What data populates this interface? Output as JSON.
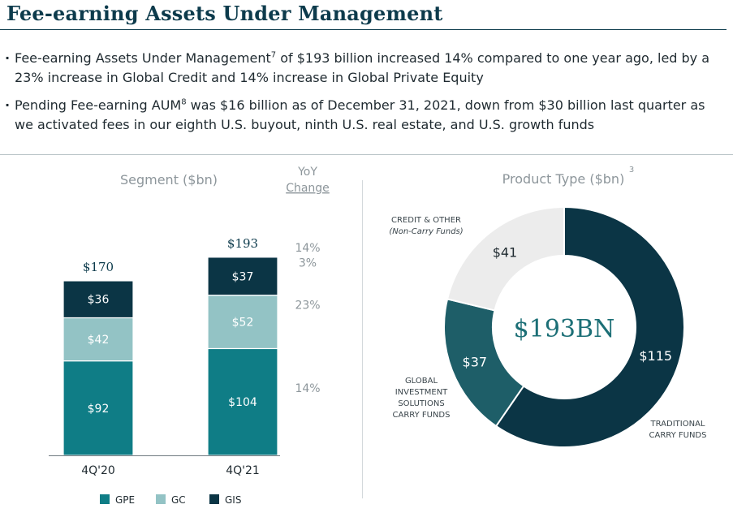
{
  "header": {
    "title": "Fee-earning Assets Under Management"
  },
  "bullets": [
    {
      "before": "Fee-earning Assets Under Management",
      "sup": "7",
      "after": " of $193 billion increased 14% compared to one year ago, led by a 23% increase in Global Credit and 14% increase in Global Private Equity"
    },
    {
      "before": "Pending Fee-earning AUM",
      "sup": "8",
      "after": " was $16 billion as of December 31, 2021, down from $30 billion last quarter as we activated fees in our eighth U.S. buyout, ninth U.S. real estate, and U.S. growth funds"
    }
  ],
  "colors": {
    "gpe": "#0f7d86",
    "gc": "#93c3c5",
    "gis": "#0b3545",
    "donut_traditional": "#0b3545",
    "donut_gis": "#1e5e68",
    "donut_credit": "#ececec",
    "accent_text": "#0d3b4c",
    "muted_text": "#8d969b"
  },
  "chart_data": [
    {
      "type": "bar",
      "stacked": true,
      "title": "Segment ($bn)",
      "categories": [
        "4Q'20",
        "4Q'21"
      ],
      "series": [
        {
          "name": "GPE",
          "values": [
            92,
            104
          ],
          "labels": [
            "$92",
            "$104"
          ]
        },
        {
          "name": "GC",
          "values": [
            42,
            52
          ],
          "labels": [
            "$42",
            "$52"
          ]
        },
        {
          "name": "GIS",
          "values": [
            36,
            37
          ],
          "labels": [
            "$36",
            "$37"
          ]
        }
      ],
      "totals": [
        170,
        193
      ],
      "total_labels": [
        "$170",
        "$193"
      ],
      "yoy_header": [
        "YoY",
        "Change"
      ],
      "yoy_total": "14%",
      "yoy_by_series": {
        "GIS": "3%",
        "GC": "23%",
        "GPE": "14%"
      },
      "legend": [
        "GPE",
        "GC",
        "GIS"
      ],
      "legend_position": "bottom",
      "ylim": [
        0,
        200
      ]
    },
    {
      "type": "pie",
      "donut": true,
      "title": "Product Type ($bn)",
      "title_sup": "3",
      "center_label": "$193BN",
      "slices": [
        {
          "label_lines": [
            "TRADITIONAL",
            "CARRY FUNDS"
          ],
          "sublabel": "",
          "value": 115,
          "value_label": "$115"
        },
        {
          "label_lines": [
            "GLOBAL",
            "INVESTMENT",
            "SOLUTIONS",
            "CARRY FUNDS"
          ],
          "sublabel": "",
          "value": 37,
          "value_label": "$37"
        },
        {
          "label_lines": [
            "CREDIT & OTHER"
          ],
          "sublabel": "(Non-Carry Funds)",
          "value": 41,
          "value_label": "$41"
        }
      ]
    }
  ]
}
